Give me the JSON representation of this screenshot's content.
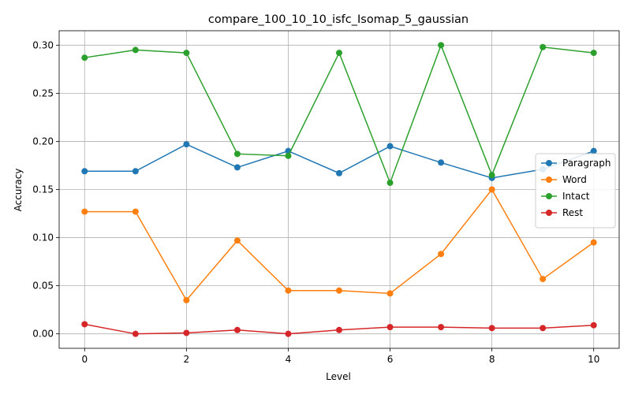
{
  "chart_data": {
    "type": "line",
    "title": "compare_100_10_10_isfc_Isomap_5_gaussian",
    "xlabel": "Level",
    "ylabel": "Accuracy",
    "x": [
      0,
      1,
      2,
      3,
      4,
      5,
      6,
      7,
      8,
      9,
      10
    ],
    "xlim": [
      -0.5,
      10.5
    ],
    "ylim": [
      -0.015,
      0.315
    ],
    "xticks": [
      0,
      2,
      4,
      6,
      8,
      10
    ],
    "xtick_labels": [
      "0",
      "2",
      "4",
      "6",
      "8",
      "10"
    ],
    "yticks": [
      0.0,
      0.05,
      0.1,
      0.15,
      0.2,
      0.25,
      0.3
    ],
    "ytick_labels": [
      "0.00",
      "0.05",
      "0.10",
      "0.15",
      "0.20",
      "0.25",
      "0.30"
    ],
    "grid": true,
    "legend_position": "center-right",
    "series": [
      {
        "name": "Paragraph",
        "color": "#1f77b4",
        "values": [
          0.169,
          0.169,
          0.197,
          0.173,
          0.19,
          0.167,
          0.195,
          0.178,
          0.162,
          0.171,
          0.19
        ]
      },
      {
        "name": "Word",
        "color": "#ff7f0e",
        "values": [
          0.127,
          0.127,
          0.035,
          0.097,
          0.045,
          0.045,
          0.042,
          0.083,
          0.15,
          0.057,
          0.095
        ]
      },
      {
        "name": "Intact",
        "color": "#2ca02c",
        "values": [
          0.287,
          0.295,
          0.292,
          0.187,
          0.185,
          0.292,
          0.157,
          0.3,
          0.165,
          0.298,
          0.292
        ]
      },
      {
        "name": "Rest",
        "color": "#d62728",
        "values": [
          0.01,
          0.0,
          0.001,
          0.004,
          0.0,
          0.004,
          0.007,
          0.007,
          0.006,
          0.006,
          0.009
        ]
      }
    ]
  }
}
